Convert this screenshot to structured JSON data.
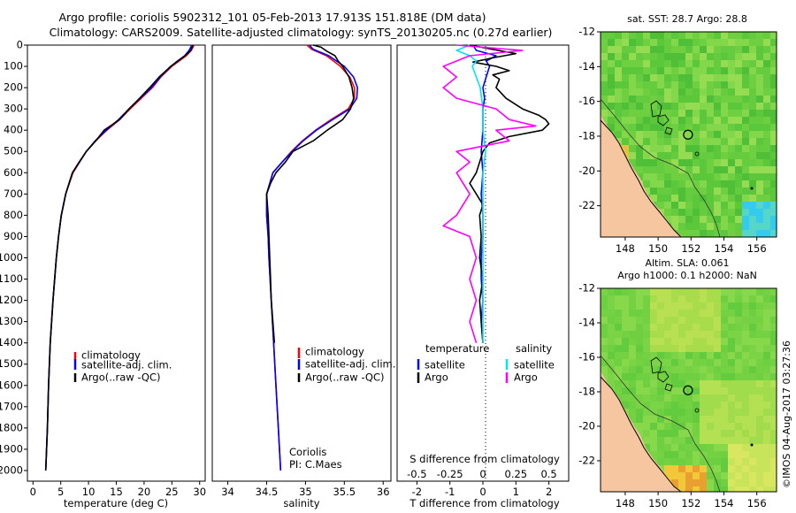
{
  "title_line1": "Argo profile: coriolis 5902312_101 05-Feb-2013 17.913S 151.818E (DM data)",
  "title_line2": "Climatology: CARS2009. Satellite-adjusted climatology: synTS_20130205.nc (0.27d earlier)",
  "depth_ticks": [
    "0",
    "100",
    "200",
    "300",
    "400",
    "500",
    "600",
    "700",
    "800",
    "900",
    "1000",
    "1100",
    "1200",
    "1300",
    "1400",
    "1500",
    "1600",
    "1700",
    "1800",
    "1900",
    "2000"
  ],
  "colors": {
    "climatology": "#ff0000",
    "satellite": "#0000ff",
    "argo": "#000000",
    "sal_sat": "#00e5ee",
    "sal_argo": "#ff00ff",
    "land": "#f5c6a0"
  },
  "chart_data": [
    {
      "type": "line",
      "panel": "temperature",
      "xlabel": "temperature (deg C)",
      "xlim": [
        -1,
        31
      ],
      "xticks": [
        "0",
        "5",
        "10",
        "15",
        "20",
        "25",
        "30"
      ],
      "ylim": [
        2050,
        0
      ],
      "legend": [
        "climatology",
        "satellite-adj. clim.",
        "Argo(..raw -QC)"
      ],
      "series": [
        {
          "name": "climatology",
          "depth": [
            0,
            25,
            50,
            75,
            100,
            150,
            200,
            250,
            300,
            350,
            400,
            450,
            500,
            600,
            700,
            800,
            900,
            1000,
            1200,
            1400,
            1600,
            1800,
            2000
          ],
          "values": [
            29.0,
            28.5,
            27.6,
            26.3,
            25.0,
            23.0,
            21.5,
            19.5,
            17.5,
            15.6,
            13.3,
            11.3,
            9.6,
            7.2,
            5.9,
            5.1,
            4.6,
            4.2,
            3.6,
            3.1,
            2.8,
            2.6,
            2.3
          ]
        },
        {
          "name": "satellite-adj. clim.",
          "depth": [
            0,
            25,
            50,
            75,
            100,
            150,
            200,
            250,
            300,
            350,
            400,
            450,
            500,
            600,
            700,
            800,
            900,
            1000,
            1200,
            1400,
            1600,
            1800,
            2000
          ],
          "values": [
            28.6,
            28.1,
            27.3,
            26.0,
            24.8,
            22.9,
            21.3,
            19.3,
            17.3,
            15.4,
            13.2,
            11.2,
            9.6,
            7.1,
            5.9,
            5.1,
            4.6,
            4.2,
            3.6,
            3.1,
            2.8,
            2.6,
            2.3
          ]
        },
        {
          "name": "Argo(..raw -QC)",
          "depth": [
            0,
            25,
            50,
            75,
            100,
            150,
            200,
            250,
            300,
            350,
            400,
            450,
            500,
            550,
            600,
            700,
            800,
            900,
            1000,
            1200,
            1400,
            1600,
            1800,
            2000
          ],
          "values": [
            28.8,
            28.4,
            27.4,
            26.1,
            24.8,
            22.7,
            21.0,
            19.2,
            17.3,
            15.6,
            12.8,
            11.3,
            9.6,
            8.3,
            7.1,
            5.9,
            5.1,
            4.6,
            4.2,
            3.6,
            3.1,
            2.8,
            2.6,
            2.3
          ]
        }
      ]
    },
    {
      "type": "line",
      "panel": "salinity",
      "xlabel": "salinity",
      "xlim": [
        33.8,
        36.1
      ],
      "xticks": [
        "34",
        "34.5",
        "35",
        "35.5",
        "36"
      ],
      "ylim": [
        2050,
        0
      ],
      "legend": [
        "climatology",
        "satellite-adj. clim.",
        "Argo(..raw -QC)"
      ],
      "annotation": [
        "Coriolis",
        "PI: C.Maes"
      ],
      "series": [
        {
          "name": "climatology",
          "depth": [
            0,
            20,
            50,
            100,
            150,
            200,
            250,
            300,
            350,
            400,
            450,
            500,
            550,
            600,
            700,
            800,
            900,
            1000,
            1200,
            1400,
            1600,
            1800,
            2000
          ],
          "values": [
            35.02,
            35.08,
            35.27,
            35.45,
            35.57,
            35.63,
            35.63,
            35.55,
            35.33,
            35.13,
            34.96,
            34.82,
            34.7,
            34.58,
            34.5,
            34.5,
            34.52,
            34.53,
            34.56,
            34.59,
            34.62,
            34.65,
            34.68
          ]
        },
        {
          "name": "satellite-adj. clim.",
          "depth": [
            0,
            20,
            50,
            100,
            150,
            200,
            250,
            300,
            350,
            400,
            450,
            500,
            550,
            600,
            700,
            800,
            900,
            1000,
            1200,
            1400,
            1600,
            1800,
            2000
          ],
          "values": [
            35.05,
            35.1,
            35.3,
            35.5,
            35.62,
            35.67,
            35.66,
            35.57,
            35.35,
            35.14,
            34.97,
            34.83,
            34.7,
            34.58,
            34.5,
            34.5,
            34.52,
            34.53,
            34.56,
            34.59,
            34.62,
            34.65,
            34.68
          ]
        },
        {
          "name": "Argo(..raw -QC)",
          "depth": [
            0,
            10,
            30,
            50,
            75,
            100,
            125,
            150,
            175,
            200,
            250,
            300,
            350,
            400,
            450,
            500,
            550,
            600,
            650,
            700,
            800,
            900,
            1000,
            1100,
            1200,
            1300,
            1400
          ],
          "values": [
            35.1,
            35.2,
            35.28,
            35.38,
            35.42,
            35.48,
            35.52,
            35.56,
            35.58,
            35.6,
            35.62,
            35.58,
            35.48,
            35.28,
            35.1,
            34.84,
            34.74,
            34.62,
            34.55,
            34.5,
            34.52,
            34.53,
            34.54,
            34.55,
            34.56,
            34.58,
            34.6
          ]
        }
      ]
    },
    {
      "type": "line",
      "panel": "difference",
      "xlabel": "T difference from climatology",
      "xlabel_top": "S difference from climatology",
      "xlim": [
        -2.6,
        2.6
      ],
      "xticks": [
        "-2",
        "-1",
        "0",
        "1",
        "2"
      ],
      "xticks_top": [
        "-0.5",
        "-0.25",
        "0",
        "0.25",
        "0.5"
      ],
      "ylim": [
        2050,
        0
      ],
      "legend_temperature": [
        "temperature",
        "satellite",
        "Argo"
      ],
      "legend_salinity": [
        "salinity",
        "satellite",
        "Argo"
      ],
      "series": [
        {
          "name": "temperature satellite",
          "depth": [
            0,
            25,
            50,
            75,
            100,
            150,
            200,
            250,
            300,
            400,
            500,
            600,
            700,
            800,
            900,
            1000,
            1100,
            1200,
            1300,
            1400
          ],
          "values": [
            -0.3,
            -0.2,
            0.4,
            0.1,
            0.2,
            0.1,
            0.0,
            0.05,
            0.0,
            0.0,
            -0.05,
            0.0,
            -0.05,
            0.0,
            0.0,
            -0.05,
            -0.05,
            0.0,
            -0.05,
            0.0
          ]
        },
        {
          "name": "temperature Argo",
          "depth": [
            0,
            20,
            40,
            60,
            80,
            100,
            120,
            140,
            160,
            200,
            250,
            300,
            330,
            350,
            370,
            400,
            430,
            460,
            500,
            550,
            600,
            650,
            700,
            750,
            800,
            900,
            1000,
            1100,
            1200,
            1300,
            1400
          ],
          "values": [
            -0.4,
            0.3,
            1.0,
            0.3,
            -0.3,
            0.4,
            0.8,
            0.3,
            0.5,
            0.4,
            0.7,
            1.2,
            1.7,
            1.9,
            2.0,
            1.8,
            0.8,
            0.2,
            0.0,
            -0.1,
            -0.2,
            -0.4,
            -0.2,
            0.0,
            -0.1,
            -0.05,
            -0.1,
            0.0,
            -0.1,
            -0.05,
            0.0
          ]
        },
        {
          "name": "salinity satellite",
          "depth": [
            0,
            25,
            50,
            75,
            100,
            150,
            200,
            300,
            400,
            500,
            600,
            700,
            800,
            900,
            1000,
            1100,
            1200,
            1300,
            1400
          ],
          "values": [
            -0.1,
            -0.2,
            -0.1,
            -0.05,
            -0.08,
            -0.05,
            -0.02,
            0.0,
            0.0,
            0.02,
            0.0,
            0.0,
            0.0,
            0.0,
            0.0,
            0.0,
            0.0,
            0.0,
            0.0
          ]
        },
        {
          "name": "salinity Argo",
          "depth": [
            0,
            25,
            50,
            100,
            150,
            200,
            250,
            300,
            350,
            380,
            400,
            450,
            500,
            550,
            600,
            700,
            800,
            850,
            900,
            1000,
            1100,
            1200,
            1300,
            1400
          ],
          "values": [
            -0.2,
            0.3,
            -0.1,
            -0.3,
            -0.2,
            -0.3,
            -0.2,
            0.1,
            0.2,
            0.4,
            0.1,
            0.2,
            -0.2,
            -0.1,
            -0.2,
            -0.1,
            -0.2,
            -0.3,
            -0.1,
            -0.05,
            -0.1,
            -0.05,
            -0.1,
            -0.05
          ]
        }
      ]
    },
    {
      "type": "heatmap",
      "panel": "map_sst",
      "title": "sat. SST: 28.7 Argo: 28.8",
      "xticks": [
        "148",
        "150",
        "152",
        "154",
        "156"
      ],
      "yticks": [
        "-12",
        "-14",
        "-16",
        "-18",
        "-20",
        "-22"
      ],
      "xlim": [
        146.5,
        157.2
      ],
      "ylim": [
        -23.8,
        -12
      ],
      "marker": {
        "lon": 151.818,
        "lat": -17.913
      }
    },
    {
      "type": "heatmap",
      "panel": "map_sla",
      "title_line1": "Altim. SLA: 0.061",
      "title_line2": "Argo h1000: 0.1 h2000: NaN",
      "xticks": [
        "148",
        "150",
        "152",
        "154",
        "156"
      ],
      "yticks": [
        "-12",
        "-14",
        "-16",
        "-18",
        "-20",
        "-22"
      ],
      "xlim": [
        146.5,
        157.2
      ],
      "ylim": [
        -23.8,
        -12
      ],
      "marker": {
        "lon": 151.818,
        "lat": -17.913
      }
    }
  ],
  "watermark": "©IMOS 04-Aug-2017 03:27:36"
}
